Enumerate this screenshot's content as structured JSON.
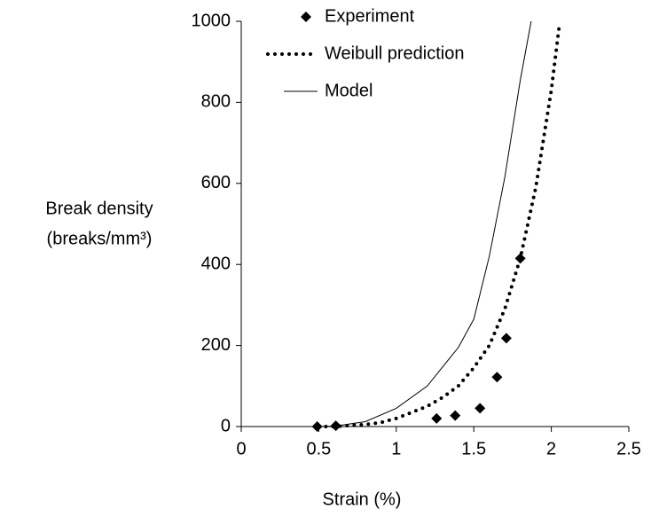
{
  "chart_data": {
    "type": "line",
    "xlabel": "Strain (%)",
    "ylabel": [
      "Break density",
      "(breaks/mm³)"
    ],
    "xlim": [
      0,
      2.5
    ],
    "xticks": [
      0,
      0.5,
      1,
      1.5,
      2,
      2.5
    ],
    "ylim": [
      0,
      1000
    ],
    "yticks": [
      0,
      200,
      400,
      600,
      800,
      1000
    ],
    "legend": "top",
    "series": [
      {
        "name": "Experiment",
        "color": "#000000",
        "style": "marker",
        "x": [
          0.49,
          0.61,
          1.26,
          1.38,
          1.54,
          1.65,
          1.71,
          1.8
        ],
        "values": [
          0,
          2,
          20,
          27,
          45,
          122,
          218,
          415
        ]
      },
      {
        "name": "Weibull prediction",
        "color": "#000000",
        "style": "dotted",
        "x": [
          0.5,
          0.6,
          0.8,
          0.9,
          1.0,
          1.1,
          1.2,
          1.3,
          1.4,
          1.5,
          1.6,
          1.7,
          1.8,
          1.9,
          2.0,
          2.05
        ],
        "values": [
          0,
          0,
          5,
          10,
          20,
          35,
          50,
          72,
          100,
          145,
          200,
          290,
          415,
          590,
          830,
          985
        ]
      },
      {
        "name": "Model",
        "color": "#000000",
        "style": "solid",
        "x": [
          0,
          0.5,
          0.6,
          0.8,
          1.0,
          1.2,
          1.4,
          1.5,
          1.6,
          1.7,
          1.8,
          1.87
        ],
        "values": [
          0,
          0,
          1,
          12,
          45,
          100,
          195,
          265,
          420,
          615,
          855,
          1000
        ]
      }
    ]
  }
}
